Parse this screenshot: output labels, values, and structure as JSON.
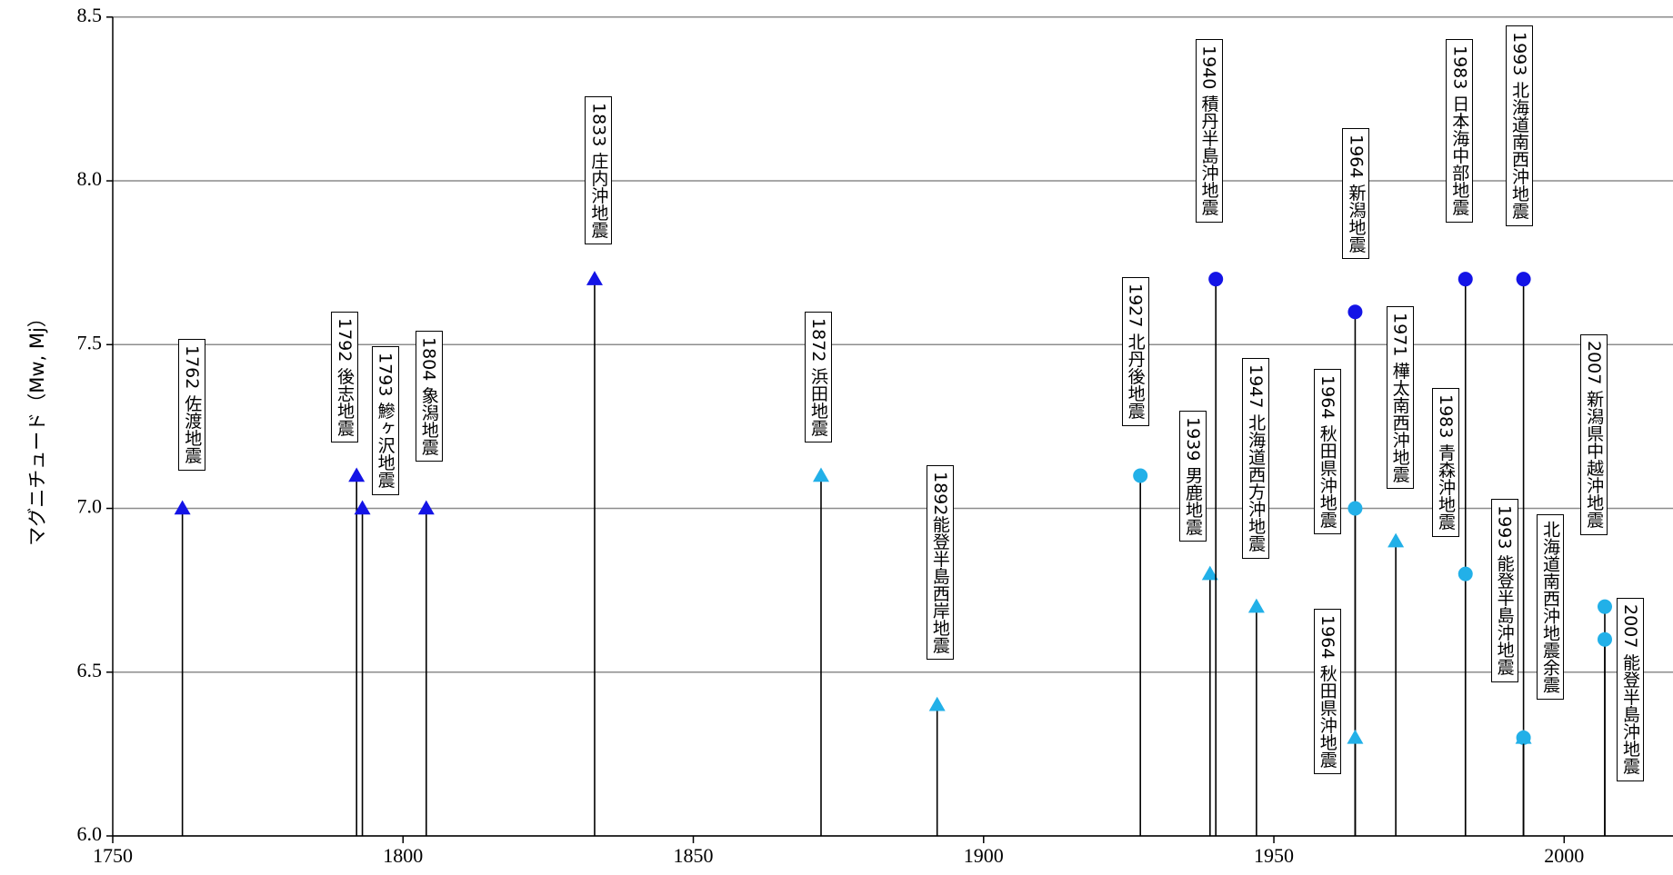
{
  "chart_data": {
    "type": "stem",
    "y_label": "マグニチュード（Mw, Mj）",
    "xlim": [
      1750,
      2020
    ],
    "xticks": [
      1750,
      1800,
      1850,
      1900,
      1950,
      2000
    ],
    "ylim": [
      6.0,
      8.5
    ],
    "yticks": [
      {
        "value": 6.0,
        "label": "6.0"
      },
      {
        "value": 6.5,
        "label": "6.5"
      },
      {
        "value": 7.0,
        "label": "7.0"
      },
      {
        "value": 7.5,
        "label": "7.5"
      },
      {
        "value": 8.0,
        "label": "8.0"
      },
      {
        "value": 8.5,
        "label": "8.5"
      }
    ],
    "grid": true,
    "events": [
      {
        "year": 1762,
        "magnitude": 7.0,
        "marker": "triangle",
        "color": "#1414e6",
        "label": "1762 佐渡地震"
      },
      {
        "year": 1792,
        "magnitude": 7.1,
        "marker": "triangle",
        "color": "#1414e6",
        "label": "1792 後志地震"
      },
      {
        "year": 1793,
        "magnitude": 7.0,
        "marker": "triangle",
        "color": "#1414e6",
        "label": "1793 鰺ヶ沢地震"
      },
      {
        "year": 1804,
        "magnitude": 7.0,
        "marker": "triangle",
        "color": "#1414e6",
        "label": "1804 象潟地震"
      },
      {
        "year": 1833,
        "magnitude": 7.7,
        "marker": "triangle",
        "color": "#1414e6",
        "label": "1833 庄内沖地震"
      },
      {
        "year": 1872,
        "magnitude": 7.1,
        "marker": "triangle",
        "color": "#22b0e8",
        "label": "1872 浜田地震"
      },
      {
        "year": 1892,
        "magnitude": 6.4,
        "marker": "triangle",
        "color": "#22b0e8",
        "label": "1892能登半島西岸地震"
      },
      {
        "year": 1927,
        "magnitude": 7.1,
        "marker": "circle",
        "color": "#22b0e8",
        "label": "1927 北丹後地震"
      },
      {
        "year": 1939,
        "magnitude": 6.8,
        "marker": "triangle",
        "color": "#22b0e8",
        "label": "1939 男鹿地震"
      },
      {
        "year": 1940,
        "magnitude": 7.7,
        "marker": "circle",
        "color": "#1414e6",
        "label": "1940 積丹半島沖地震"
      },
      {
        "year": 1947,
        "magnitude": 6.7,
        "marker": "triangle",
        "color": "#22b0e8",
        "label": "1947 北海道西方沖地震"
      },
      {
        "year": 1964,
        "magnitude": 7.6,
        "marker": "circle",
        "color": "#1414e6",
        "label": "1964 新潟地震"
      },
      {
        "year": 1964,
        "magnitude": 7.0,
        "marker": "circle",
        "color": "#22b0e8",
        "label": "1964 秋田県沖地震"
      },
      {
        "year": 1964,
        "magnitude": 6.3,
        "marker": "triangle",
        "color": "#22b0e8",
        "label": "1964 秋田県沖地震"
      },
      {
        "year": 1971,
        "magnitude": 6.9,
        "marker": "triangle",
        "color": "#22b0e8",
        "label": "1971 樺太南西沖地震"
      },
      {
        "year": 1983,
        "magnitude": 7.7,
        "marker": "circle",
        "color": "#1414e6",
        "label": "1983 日本海中部地震"
      },
      {
        "year": 1983,
        "magnitude": 6.8,
        "marker": "circle",
        "color": "#22b0e8",
        "label": "1983 青森沖地震"
      },
      {
        "year": 1993,
        "magnitude": 7.7,
        "marker": "circle",
        "color": "#1414e6",
        "label": "1993 北海道南西沖地震"
      },
      {
        "year": 1993,
        "magnitude": 6.3,
        "marker": "circle",
        "color": "#22b0e8",
        "label": "1993 能登半島沖地震"
      },
      {
        "year": 1993,
        "magnitude": 6.3,
        "marker": "triangle",
        "color": "#22b0e8",
        "label": "北海道南西沖地震余震"
      },
      {
        "year": 2007,
        "magnitude": 6.7,
        "marker": "circle",
        "color": "#22b0e8",
        "label": "2007 新潟県中越沖地震"
      },
      {
        "year": 2007,
        "magnitude": 6.6,
        "marker": "circle",
        "color": "#22b0e8",
        "label": "2007 能登半島沖地震"
      }
    ]
  }
}
